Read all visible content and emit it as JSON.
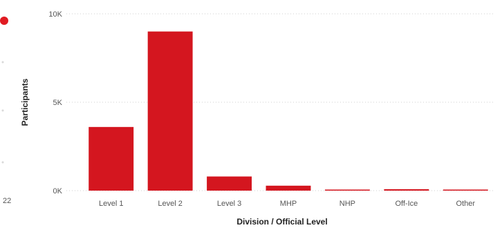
{
  "chart_data": {
    "type": "bar",
    "title": "",
    "xlabel": "Division / Official Level",
    "ylabel": "Participants",
    "categories": [
      "Level 1",
      "Level 2",
      "Level 3",
      "MHP",
      "NHP",
      "Off-Ice",
      "Other"
    ],
    "series": [
      {
        "values": [
          3600,
          9000,
          800,
          280,
          60,
          80,
          60
        ]
      }
    ],
    "ylim": [
      0,
      10000
    ],
    "yticks": [
      {
        "value": 10000,
        "label": "10K"
      },
      {
        "value": 5000,
        "label": "5K"
      },
      {
        "value": 0,
        "label": "0K"
      }
    ],
    "grid": "horizontal dotted",
    "colors": {
      "bar": "#d4161f",
      "grid": "#cfcfcf",
      "accent": "#e01b22"
    }
  },
  "left_edge": {
    "clipped_text": "22"
  }
}
